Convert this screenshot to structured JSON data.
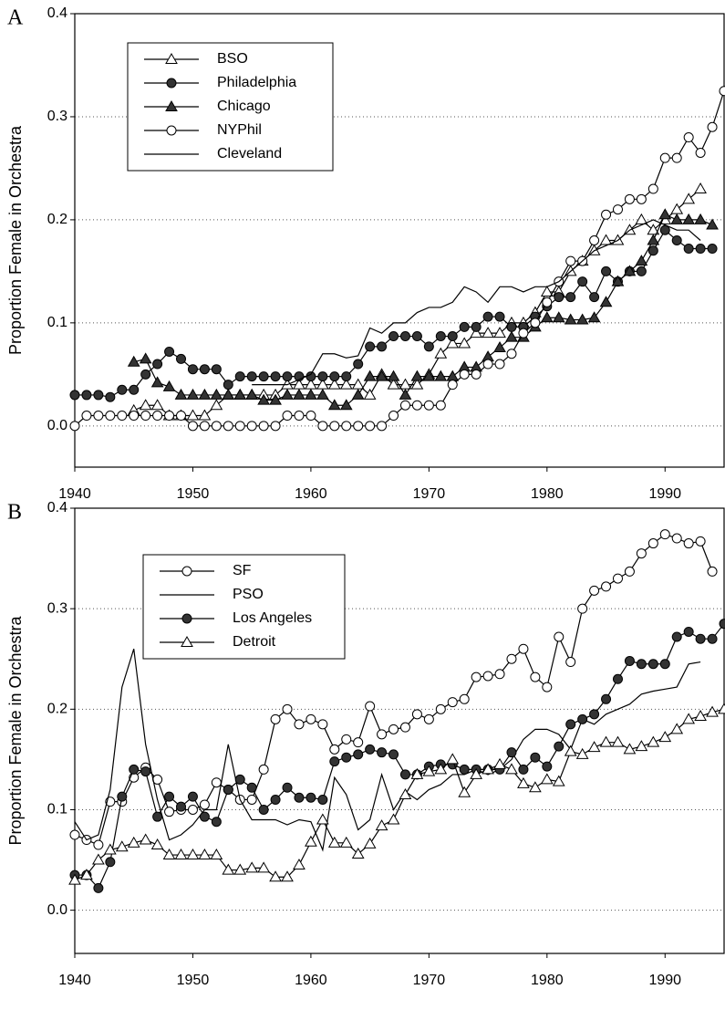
{
  "chart_data": [
    {
      "type": "line",
      "panel_label": "A",
      "ylabel": "Proportion Female in Orchestra",
      "x": [
        1940,
        1941,
        1942,
        1943,
        1944,
        1945,
        1946,
        1947,
        1948,
        1949,
        1950,
        1951,
        1952,
        1953,
        1954,
        1955,
        1956,
        1957,
        1958,
        1959,
        1960,
        1961,
        1962,
        1963,
        1964,
        1965,
        1966,
        1967,
        1968,
        1969,
        1970,
        1971,
        1972,
        1973,
        1974,
        1975,
        1976,
        1977,
        1978,
        1979,
        1980,
        1981,
        1982,
        1983,
        1984,
        1985,
        1986,
        1987,
        1988,
        1989,
        1990,
        1991,
        1992,
        1993,
        1994,
        1995
      ],
      "xlim": [
        1940,
        1995
      ],
      "xticks": [
        1940,
        1950,
        1960,
        1970,
        1980,
        1990
      ],
      "ylim": [
        -0.04,
        0.4
      ],
      "yticks": [
        {
          "value": 0,
          "label": "0.0"
        },
        0.1,
        0.2,
        0.3,
        0.4
      ],
      "grid": true,
      "legend": "upper left",
      "series": [
        {
          "name": "BSO",
          "color": "#000000",
          "marker": "triangle-open",
          "values": [
            null,
            null,
            null,
            null,
            null,
            0.015,
            0.02,
            0.02,
            0.01,
            0.01,
            0.01,
            0.01,
            0.02,
            0.03,
            0.03,
            0.03,
            0.03,
            0.03,
            0.04,
            0.04,
            0.04,
            0.04,
            0.04,
            0.04,
            0.04,
            0.03,
            0.05,
            0.04,
            0.04,
            0.04,
            0.05,
            0.07,
            0.08,
            0.08,
            0.09,
            0.09,
            0.09,
            0.1,
            0.1,
            0.11,
            0.13,
            0.13,
            0.15,
            0.16,
            0.17,
            0.18,
            0.18,
            0.19,
            0.2,
            0.19,
            0.2,
            0.21,
            0.22,
            0.23,
            null,
            null
          ]
        },
        {
          "name": "Philadelphia",
          "color": "#000000",
          "marker": "circle-filled",
          "values": [
            0.03,
            0.03,
            0.03,
            0.028,
            0.035,
            0.035,
            0.05,
            0.06,
            0.072,
            0.065,
            0.055,
            0.055,
            0.055,
            0.04,
            0.048,
            0.048,
            0.048,
            0.048,
            0.048,
            0.048,
            0.048,
            0.048,
            0.048,
            0.048,
            0.06,
            0.077,
            0.077,
            0.087,
            0.087,
            0.087,
            0.077,
            0.087,
            0.087,
            0.096,
            0.096,
            0.106,
            0.106,
            0.096,
            0.096,
            0.106,
            0.116,
            0.125,
            0.125,
            0.14,
            0.125,
            0.15,
            0.14,
            0.15,
            0.15,
            0.17,
            0.19,
            0.18,
            0.172,
            0.172,
            0.172,
            null
          ]
        },
        {
          "name": "Chicago",
          "color": "#000000",
          "marker": "triangle-filled",
          "values": [
            null,
            null,
            null,
            null,
            null,
            0.062,
            0.065,
            0.042,
            0.038,
            0.03,
            0.03,
            0.03,
            0.03,
            0.03,
            0.03,
            0.03,
            0.025,
            0.025,
            0.03,
            0.03,
            0.03,
            0.03,
            0.02,
            0.02,
            0.03,
            0.048,
            0.048,
            0.048,
            0.03,
            0.048,
            0.048,
            0.048,
            0.048,
            0.057,
            0.057,
            0.067,
            0.076,
            0.086,
            0.086,
            0.096,
            0.105,
            0.105,
            0.103,
            0.103,
            0.105,
            0.12,
            0.14,
            0.15,
            0.16,
            0.18,
            0.205,
            0.2,
            0.2,
            0.2,
            0.195,
            null
          ]
        },
        {
          "name": "NYPhil",
          "color": "#000000",
          "marker": "circle-open",
          "values": [
            0,
            0.01,
            0.01,
            0.01,
            0.01,
            0.01,
            0.01,
            0.01,
            0.01,
            0.01,
            0,
            0,
            0,
            0,
            0,
            0,
            0,
            0,
            0.01,
            0.01,
            0.01,
            0,
            0,
            0,
            0,
            0,
            0,
            0.01,
            0.02,
            0.02,
            0.02,
            0.02,
            0.04,
            0.05,
            0.05,
            0.06,
            0.06,
            0.07,
            0.09,
            0.1,
            0.12,
            0.14,
            0.16,
            0.16,
            0.18,
            0.205,
            0.21,
            0.22,
            0.22,
            0.23,
            0.26,
            0.26,
            0.28,
            0.265,
            0.29,
            0.325
          ]
        },
        {
          "name": "Cleveland",
          "color": "#000000",
          "marker": "none",
          "values": [
            null,
            null,
            null,
            null,
            null,
            null,
            null,
            null,
            null,
            null,
            null,
            null,
            null,
            null,
            null,
            0.04,
            0.04,
            0.04,
            0.04,
            0.045,
            0.05,
            0.07,
            0.07,
            0.066,
            0.068,
            0.095,
            0.09,
            0.1,
            0.1,
            0.11,
            0.115,
            0.115,
            0.12,
            0.135,
            0.13,
            0.12,
            0.135,
            0.135,
            0.13,
            0.135,
            0.135,
            0.14,
            0.15,
            0.16,
            0.17,
            0.175,
            0.18,
            0.19,
            0.195,
            0.2,
            0.195,
            0.19,
            0.19,
            0.18,
            null,
            null
          ]
        }
      ]
    },
    {
      "type": "line",
      "panel_label": "B",
      "ylabel": "Proportion Female in Orchestra",
      "x": [
        1940,
        1941,
        1942,
        1943,
        1944,
        1945,
        1946,
        1947,
        1948,
        1949,
        1950,
        1951,
        1952,
        1953,
        1954,
        1955,
        1956,
        1957,
        1958,
        1959,
        1960,
        1961,
        1962,
        1963,
        1964,
        1965,
        1966,
        1967,
        1968,
        1969,
        1970,
        1971,
        1972,
        1973,
        1974,
        1975,
        1976,
        1977,
        1978,
        1979,
        1980,
        1981,
        1982,
        1983,
        1984,
        1985,
        1986,
        1987,
        1988,
        1989,
        1990,
        1991,
        1992,
        1993,
        1994,
        1995
      ],
      "xlim": [
        1940,
        1995
      ],
      "xticks": [
        1940,
        1950,
        1960,
        1970,
        1980,
        1990
      ],
      "ylim": [
        -0.043,
        0.4
      ],
      "yticks": [
        {
          "value": 0,
          "label": "0.0"
        },
        0.1,
        0.2,
        0.3,
        0.4
      ],
      "grid": true,
      "legend": "upper left",
      "series": [
        {
          "name": "SF",
          "color": "#000000",
          "marker": "circle-open",
          "values": [
            0.075,
            0.07,
            0.065,
            0.108,
            0.108,
            0.132,
            0.142,
            0.13,
            0.098,
            0.1,
            0.1,
            0.105,
            0.127,
            0.12,
            0.11,
            0.11,
            0.14,
            0.19,
            0.2,
            0.185,
            0.19,
            0.185,
            0.16,
            0.17,
            0.167,
            0.203,
            0.175,
            0.18,
            0.182,
            0.195,
            0.19,
            0.2,
            0.207,
            0.21,
            0.232,
            0.233,
            0.235,
            0.25,
            0.26,
            0.232,
            0.222,
            0.272,
            0.247,
            0.3,
            0.318,
            0.322,
            0.33,
            0.337,
            0.355,
            0.365,
            0.374,
            0.37,
            0.365,
            0.367,
            0.337,
            null
          ]
        },
        {
          "name": "PSO",
          "color": "#000000",
          "marker": "none",
          "values": [
            0.088,
            0.07,
            0.075,
            0.12,
            0.222,
            0.26,
            0.165,
            0.11,
            0.07,
            0.075,
            0.085,
            0.1,
            0.1,
            0.165,
            0.11,
            0.09,
            0.09,
            0.09,
            0.085,
            0.09,
            0.088,
            0.06,
            0.132,
            0.115,
            0.08,
            0.09,
            0.135,
            0.1,
            0.118,
            0.11,
            0.12,
            0.125,
            0.135,
            0.135,
            0.14,
            0.135,
            0.14,
            0.15,
            0.17,
            0.18,
            0.18,
            0.175,
            0.16,
            0.19,
            0.185,
            0.195,
            0.2,
            0.205,
            0.215,
            0.218,
            0.22,
            0.222,
            0.245,
            0.247,
            null,
            null
          ]
        },
        {
          "name": "Los Angeles",
          "color": "#000000",
          "marker": "circle-filled",
          "values": [
            0.035,
            0.035,
            0.022,
            0.048,
            0.113,
            0.14,
            0.138,
            0.093,
            0.113,
            0.103,
            0.113,
            0.093,
            0.088,
            0.12,
            0.13,
            0.122,
            0.1,
            0.11,
            0.122,
            0.112,
            0.112,
            0.11,
            0.148,
            0.152,
            0.155,
            0.16,
            0.157,
            0.155,
            0.135,
            0.135,
            0.143,
            0.145,
            0.145,
            0.14,
            0.14,
            0.14,
            0.14,
            0.157,
            0.14,
            0.152,
            0.143,
            0.163,
            0.185,
            0.19,
            0.195,
            0.21,
            0.23,
            0.248,
            0.245,
            0.245,
            0.245,
            0.272,
            0.277,
            0.27,
            0.27,
            0.285
          ]
        },
        {
          "name": "Detroit",
          "color": "#000000",
          "marker": "triangle-open",
          "values": [
            0.03,
            0.035,
            0.05,
            0.06,
            0.063,
            0.067,
            0.07,
            0.065,
            0.055,
            0.055,
            0.055,
            0.055,
            0.055,
            0.04,
            0.04,
            0.042,
            0.042,
            0.033,
            0.033,
            0.045,
            0.068,
            0.09,
            0.067,
            0.067,
            0.056,
            0.066,
            0.084,
            0.09,
            0.115,
            0.135,
            0.138,
            0.14,
            0.15,
            0.117,
            0.135,
            0.14,
            0.145,
            0.14,
            0.126,
            0.122,
            0.13,
            0.128,
            0.158,
            0.155,
            0.162,
            0.167,
            0.167,
            0.16,
            0.163,
            0.167,
            0.172,
            0.18,
            0.19,
            0.193,
            0.197,
            0.2
          ]
        }
      ]
    }
  ]
}
